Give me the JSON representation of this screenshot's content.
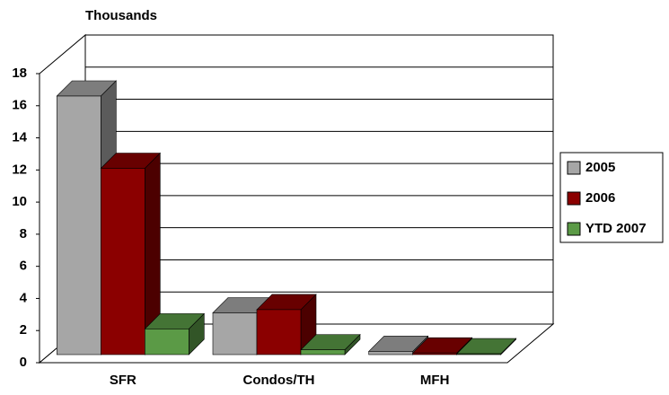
{
  "chart_data": {
    "type": "bar3d",
    "title": "Thousands",
    "categories": [
      "SFR",
      "Condos/TH",
      "MFH"
    ],
    "series": [
      {
        "name": "2005",
        "color": "#a6a6a6",
        "values": [
          16.1,
          2.6,
          0.2
        ]
      },
      {
        "name": "2006",
        "color": "#8b0000",
        "values": [
          11.6,
          2.8,
          0.1
        ]
      },
      {
        "name": "YTD 2007",
        "color": "#5b9a46",
        "values": [
          1.6,
          0.3,
          0.05
        ]
      }
    ],
    "ylim": [
      0,
      18
    ],
    "yticks": [
      0,
      2,
      4,
      6,
      8,
      10,
      12,
      14,
      16,
      18
    ],
    "grid": true,
    "legend": "right"
  }
}
